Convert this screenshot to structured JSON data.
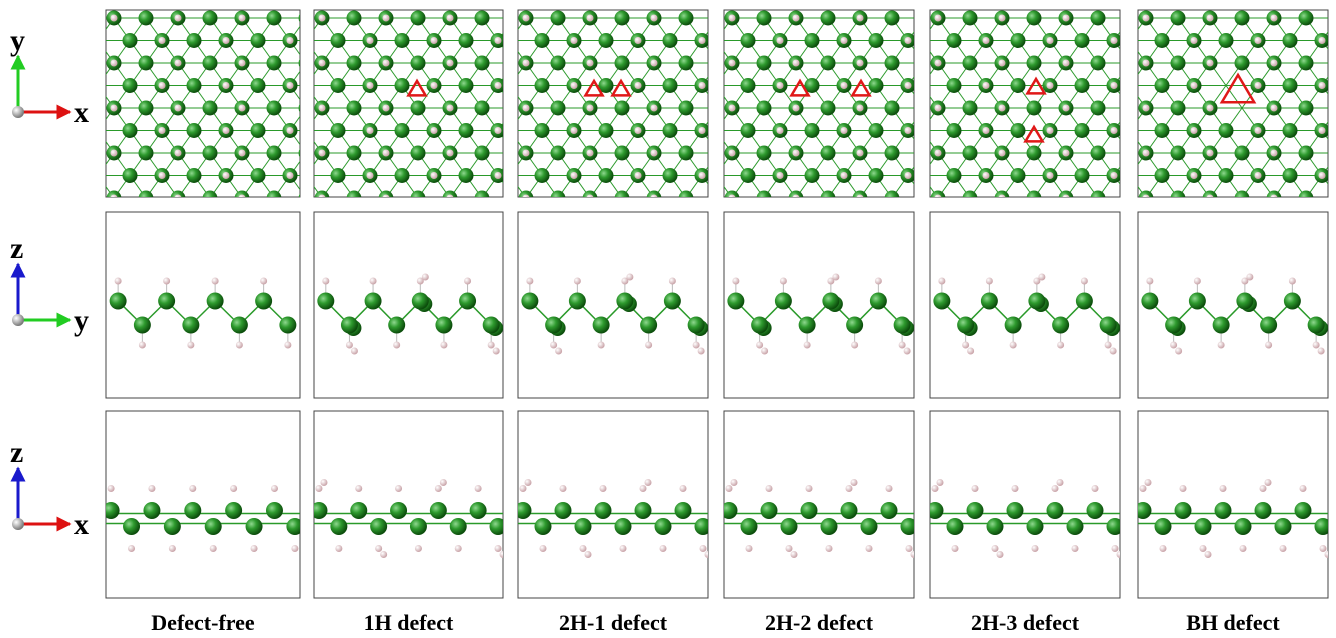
{
  "axes": [
    {
      "vertical": "y",
      "horizontal": "x"
    },
    {
      "vertical": "z",
      "horizontal": "y"
    },
    {
      "vertical": "z",
      "horizontal": "x"
    }
  ],
  "columns": [
    "Defect-free",
    "1H defect",
    "2H-1 defect",
    "2H-2 defect",
    "2H-3 defect",
    "BH defect"
  ]
}
